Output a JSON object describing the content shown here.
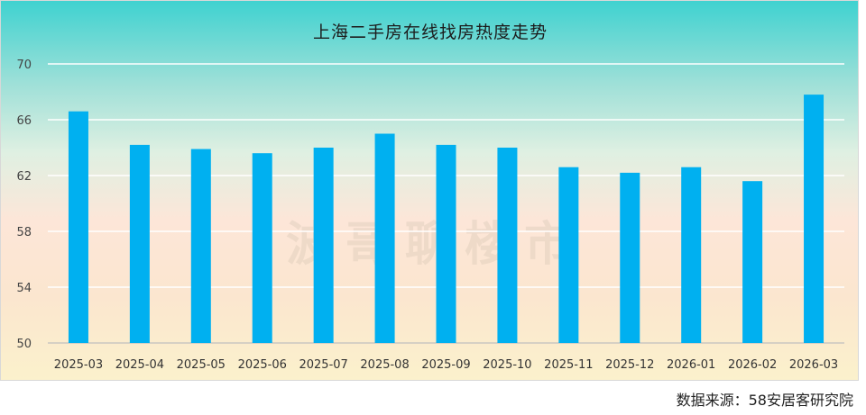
{
  "chart_data": {
    "type": "bar",
    "title": "上海二手房在线找房热度走势",
    "categories": [
      "2025-03",
      "2025-04",
      "2025-05",
      "2025-06",
      "2025-07",
      "2025-08",
      "2025-09",
      "2025-10",
      "2025-11",
      "2025-12",
      "2026-01",
      "2026-02",
      "2026-03"
    ],
    "values": [
      66.6,
      64.2,
      63.9,
      63.6,
      64.0,
      65.0,
      64.2,
      64.0,
      62.6,
      62.2,
      62.6,
      61.6,
      67.8
    ],
    "ylim": [
      50,
      70
    ],
    "yticks": [
      "50",
      "54",
      "58",
      "62",
      "66",
      "70"
    ],
    "grid": true,
    "bar_color": "#00b0f0",
    "xlabel": "",
    "ylabel": ""
  },
  "watermark": "波哥聊楼市",
  "source": "数据来源：58安居客研究院"
}
